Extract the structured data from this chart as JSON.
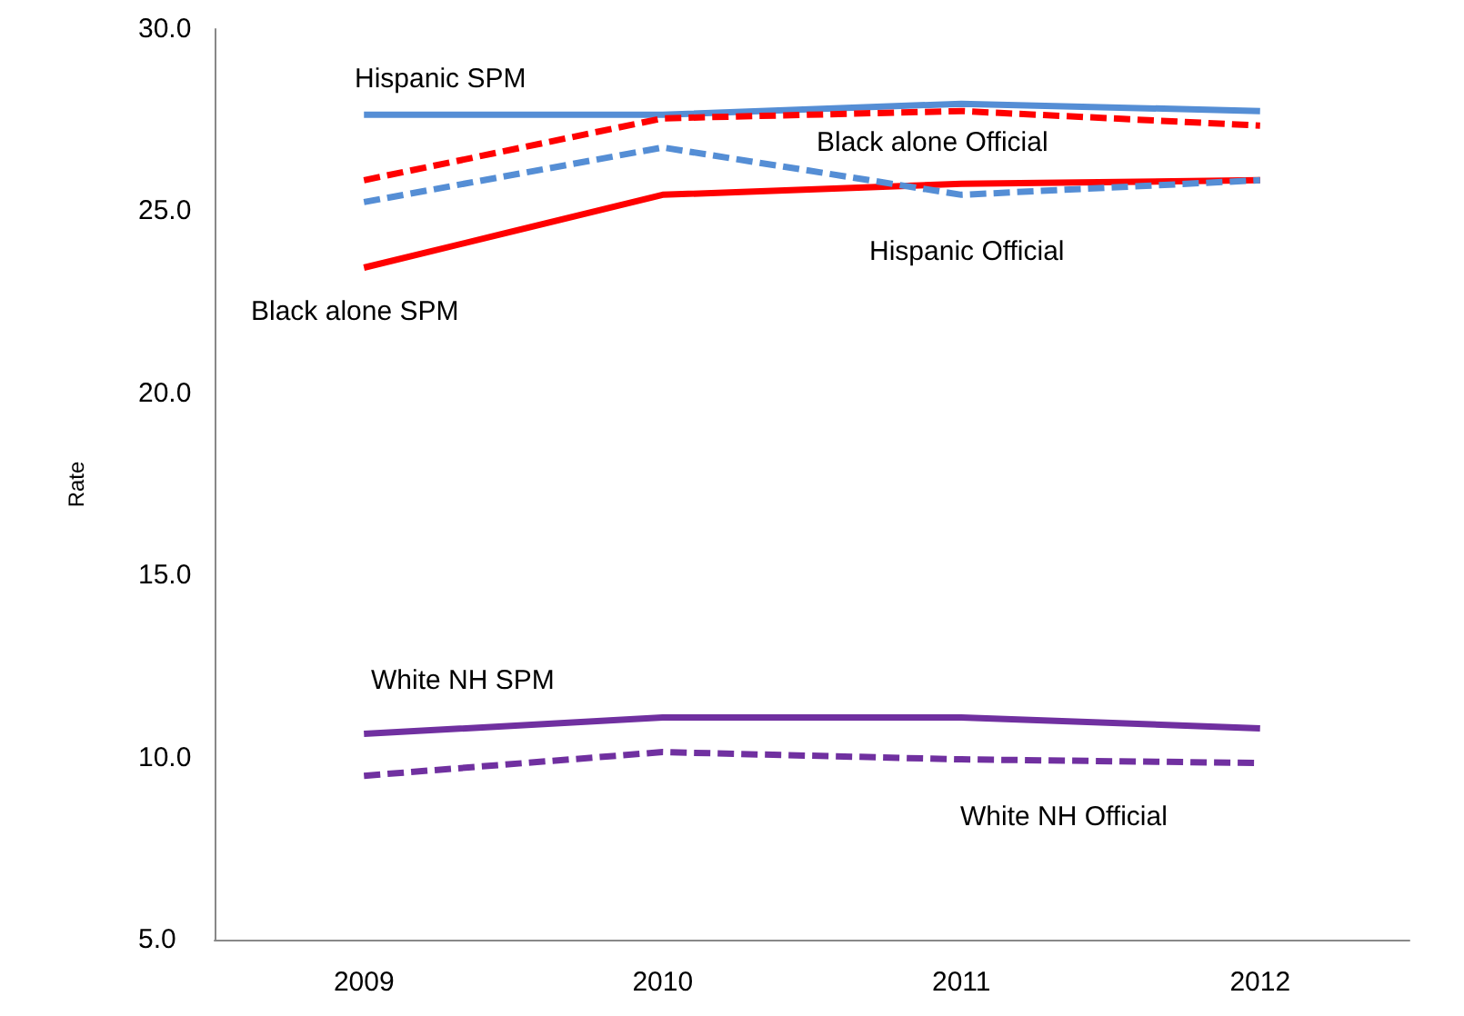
{
  "chart_data": {
    "type": "line",
    "ylabel": "Rate",
    "categories": [
      "2009",
      "2010",
      "2011",
      "2012"
    ],
    "ylim": [
      5,
      30
    ],
    "yticks": [
      {
        "value": 5,
        "label": "5.0"
      },
      {
        "value": 10,
        "label": "10.0"
      },
      {
        "value": 15,
        "label": "15.0"
      },
      {
        "value": 20,
        "label": "20.0"
      },
      {
        "value": 25,
        "label": "25.0"
      },
      {
        "value": 30,
        "label": "30.0"
      }
    ],
    "grid": false,
    "legend": false,
    "marker": "none",
    "series": [
      {
        "name": "Hispanic SPM",
        "color": "#558ed5",
        "line_style": "solid",
        "values": [
          27.65,
          27.65,
          27.95,
          27.75
        ]
      },
      {
        "name": "Black alone Official",
        "color": "#ff0000",
        "line_style": "dashed",
        "values": [
          25.85,
          27.55,
          27.75,
          27.35
        ]
      },
      {
        "name": "Hispanic Official",
        "color": "#558ed5",
        "line_style": "dashed",
        "values": [
          25.25,
          26.75,
          25.45,
          25.85
        ]
      },
      {
        "name": "Black alone SPM",
        "color": "#ff0000",
        "line_style": "solid",
        "values": [
          23.45,
          25.45,
          25.75,
          25.85
        ]
      },
      {
        "name": "White NH SPM",
        "color": "#7030a0",
        "line_style": "solid",
        "values": [
          10.65,
          11.1,
          11.1,
          10.8
        ]
      },
      {
        "name": "White NH Official",
        "color": "#7030a0",
        "line_style": "dashed",
        "values": [
          9.5,
          10.15,
          9.95,
          9.85
        ]
      }
    ]
  }
}
